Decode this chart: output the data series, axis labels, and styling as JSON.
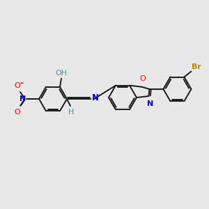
{
  "bg_color": "#e8e8e8",
  "bond_color": "#1a1a1a",
  "atom_colors": {
    "O": "#ff0000",
    "N": "#0000cc",
    "H_teal": "#4a9090",
    "Br": "#b8860b"
  },
  "figsize": [
    3.0,
    3.0
  ],
  "dpi": 100,
  "bond_lw": 1.4,
  "sep": 2.3
}
